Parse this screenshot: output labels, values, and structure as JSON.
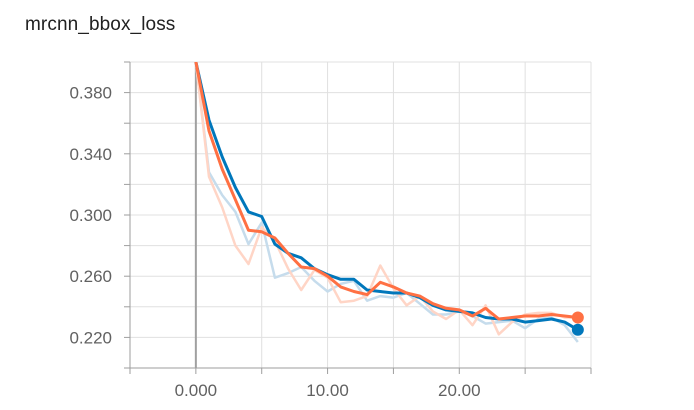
{
  "chart_data": {
    "type": "line",
    "title": "mrcnn_bbox_loss",
    "xlabel": "",
    "ylabel": "",
    "xlim": [
      -5,
      30
    ],
    "ylim": [
      0.2,
      0.4
    ],
    "x_ticks": [
      0,
      10,
      20
    ],
    "x_tick_labels": [
      "0.000",
      "10.00",
      "20.00"
    ],
    "y_ticks": [
      0.22,
      0.26,
      0.3,
      0.34,
      0.38
    ],
    "y_tick_labels": [
      "0.220",
      "0.260",
      "0.300",
      "0.340",
      "0.380"
    ],
    "grid": true,
    "series": [
      {
        "color": "#0077bb",
        "raw_color": "#c6dcec",
        "smoothed": [
          [
            0,
            0.4
          ],
          [
            1,
            0.362
          ],
          [
            2,
            0.338
          ],
          [
            3,
            0.318
          ],
          [
            4,
            0.302
          ],
          [
            5,
            0.299
          ],
          [
            6,
            0.281
          ],
          [
            7,
            0.275
          ],
          [
            8,
            0.272
          ],
          [
            9,
            0.265
          ],
          [
            10,
            0.261
          ],
          [
            11,
            0.258
          ],
          [
            12,
            0.258
          ],
          [
            13,
            0.251
          ],
          [
            14,
            0.25
          ],
          [
            15,
            0.249
          ],
          [
            16,
            0.249
          ],
          [
            17,
            0.246
          ],
          [
            18,
            0.241
          ],
          [
            19,
            0.238
          ],
          [
            20,
            0.237
          ],
          [
            21,
            0.236
          ],
          [
            22,
            0.233
          ],
          [
            23,
            0.232
          ],
          [
            24,
            0.232
          ],
          [
            25,
            0.23
          ],
          [
            26,
            0.231
          ],
          [
            27,
            0.232
          ],
          [
            28,
            0.23
          ],
          [
            29,
            0.225
          ]
        ],
        "raw": [
          [
            0,
            0.4
          ],
          [
            1,
            0.328
          ],
          [
            2,
            0.313
          ],
          [
            3,
            0.302
          ],
          [
            4,
            0.281
          ],
          [
            5,
            0.295
          ],
          [
            6,
            0.259
          ],
          [
            7,
            0.262
          ],
          [
            8,
            0.266
          ],
          [
            9,
            0.257
          ],
          [
            10,
            0.25
          ],
          [
            11,
            0.255
          ],
          [
            12,
            0.257
          ],
          [
            13,
            0.244
          ],
          [
            14,
            0.247
          ],
          [
            15,
            0.246
          ],
          [
            16,
            0.249
          ],
          [
            17,
            0.242
          ],
          [
            18,
            0.235
          ],
          [
            19,
            0.235
          ],
          [
            20,
            0.237
          ],
          [
            21,
            0.234
          ],
          [
            22,
            0.229
          ],
          [
            23,
            0.23
          ],
          [
            24,
            0.231
          ],
          [
            25,
            0.226
          ],
          [
            26,
            0.232
          ],
          [
            27,
            0.233
          ],
          [
            28,
            0.228
          ],
          [
            29,
            0.217
          ]
        ]
      },
      {
        "color": "#ff7043",
        "raw_color": "#ffd5c6",
        "smoothed": [
          [
            0,
            0.4
          ],
          [
            1,
            0.355
          ],
          [
            2,
            0.33
          ],
          [
            3,
            0.31
          ],
          [
            4,
            0.29
          ],
          [
            5,
            0.289
          ],
          [
            6,
            0.285
          ],
          [
            7,
            0.275
          ],
          [
            8,
            0.266
          ],
          [
            9,
            0.265
          ],
          [
            10,
            0.26
          ],
          [
            11,
            0.253
          ],
          [
            12,
            0.25
          ],
          [
            13,
            0.248
          ],
          [
            14,
            0.256
          ],
          [
            15,
            0.253
          ],
          [
            16,
            0.249
          ],
          [
            17,
            0.247
          ],
          [
            18,
            0.242
          ],
          [
            19,
            0.239
          ],
          [
            20,
            0.238
          ],
          [
            21,
            0.234
          ],
          [
            22,
            0.239
          ],
          [
            23,
            0.232
          ],
          [
            24,
            0.233
          ],
          [
            25,
            0.234
          ],
          [
            26,
            0.234
          ],
          [
            27,
            0.235
          ],
          [
            28,
            0.234
          ],
          [
            29,
            0.233
          ]
        ],
        "raw": [
          [
            0,
            0.4
          ],
          [
            1,
            0.325
          ],
          [
            2,
            0.305
          ],
          [
            3,
            0.28
          ],
          [
            4,
            0.268
          ],
          [
            5,
            0.292
          ],
          [
            6,
            0.283
          ],
          [
            7,
            0.265
          ],
          [
            8,
            0.251
          ],
          [
            9,
            0.264
          ],
          [
            10,
            0.259
          ],
          [
            11,
            0.243
          ],
          [
            12,
            0.244
          ],
          [
            13,
            0.247
          ],
          [
            14,
            0.267
          ],
          [
            15,
            0.252
          ],
          [
            16,
            0.241
          ],
          [
            17,
            0.247
          ],
          [
            18,
            0.237
          ],
          [
            19,
            0.232
          ],
          [
            20,
            0.238
          ],
          [
            21,
            0.228
          ],
          [
            22,
            0.241
          ],
          [
            23,
            0.222
          ],
          [
            24,
            0.23
          ],
          [
            25,
            0.235
          ],
          [
            26,
            0.236
          ],
          [
            27,
            0.236
          ],
          [
            28,
            0.233
          ],
          [
            29,
            0.233
          ]
        ]
      }
    ]
  }
}
